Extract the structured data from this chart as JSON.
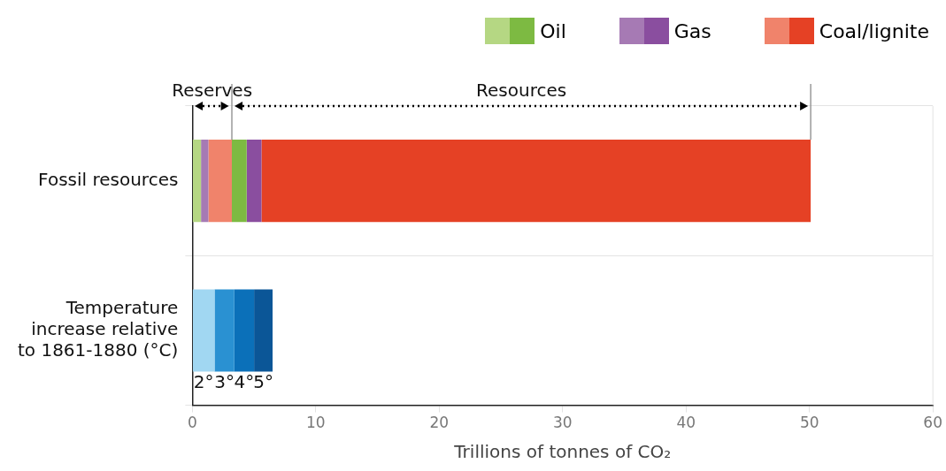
{
  "chart_data": {
    "type": "bar",
    "orientation": "horizontal",
    "stacked": true,
    "categories": [
      "Fossil resources",
      "Temperature increase relative to 1861-1880 (°C)"
    ],
    "series": [
      {
        "name": "Oil",
        "color": "#b5d783",
        "values": [
          0.7,
          null
        ]
      },
      {
        "name": "Gas",
        "color": "#a67ab4",
        "values": [
          0.6,
          null
        ]
      },
      {
        "name": "Coal/lignite",
        "color": "#f0836b",
        "values": [
          1.9,
          null
        ]
      },
      {
        "color": "#7dba42",
        "values": [
          1.2,
          null
        ]
      },
      {
        "color": "#8a4e9f",
        "values": [
          1.2,
          null
        ]
      },
      {
        "color": "#e54125",
        "values": [
          44.5,
          null
        ]
      },
      {
        "name": "2°",
        "color": "#a1d7f2",
        "values": [
          null,
          1.8
        ]
      },
      {
        "name": "3°",
        "color": "#2a91d2",
        "values": [
          null,
          1.6
        ]
      },
      {
        "name": "4°",
        "color": "#0b70b9",
        "values": [
          null,
          1.6
        ]
      },
      {
        "name": "5°",
        "color": "#0b5697",
        "values": [
          null,
          1.5
        ]
      }
    ],
    "xlim": [
      0,
      60
    ],
    "xticks": [
      0,
      10,
      20,
      30,
      40,
      50,
      60
    ],
    "xlabel": "Trillions of tonnes of CO₂",
    "ref_lines": [
      {
        "axis": "x",
        "value": 3.2,
        "color": "#999999"
      },
      {
        "axis": "x",
        "value": 50.1,
        "color": "#999999"
      }
    ],
    "annotations": [
      "Reserves",
      "Resources"
    ],
    "grid": "y",
    "legend": "top right"
  }
}
